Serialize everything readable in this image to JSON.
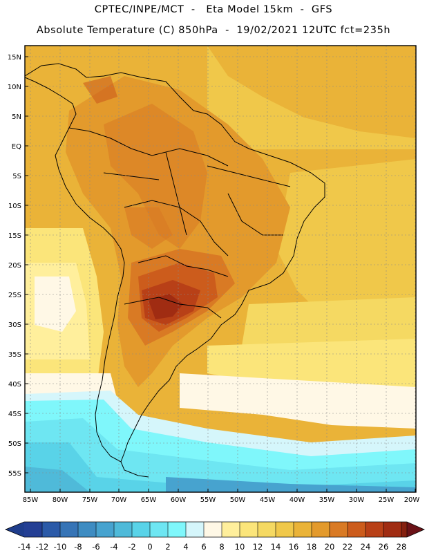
{
  "header": {
    "line1": "CPTEC/INPE/MCT  -   Eta Model 15km  -  GFS",
    "line2": "Absolute Temperature (C) 850hPa  -  19/02/2021 12UTC fct=235h"
  },
  "map": {
    "lat_labels": [
      "15N",
      "10N",
      "5N",
      "EQ",
      "5S",
      "10S",
      "15S",
      "20S",
      "25S",
      "30S",
      "35S",
      "40S",
      "45S",
      "50S",
      "55S"
    ],
    "lon_labels": [
      "85W",
      "80W",
      "75W",
      "70W",
      "65W",
      "60W",
      "55W",
      "50W",
      "45W",
      "40W",
      "35W",
      "30W",
      "25W",
      "20W"
    ],
    "lat_range": [
      16,
      -58
    ],
    "lon_range": [
      -86,
      -20
    ]
  },
  "colorbar": {
    "labels": [
      "-14",
      "-12",
      "-10",
      "-8",
      "-6",
      "-4",
      "-2",
      "0",
      "2",
      "4",
      "6",
      "8",
      "10",
      "12",
      "14",
      "16",
      "18",
      "20",
      "22",
      "24",
      "26",
      "28"
    ],
    "colors": {
      "under": "#1f3d8c",
      "c01": "#243f94",
      "c02": "#2b5aa8",
      "c03": "#3674b6",
      "c04": "#3e8cc2",
      "c05": "#47a3cf",
      "c06": "#4fbad9",
      "c07": "#59d3e8",
      "c08": "#6ee6f2",
      "c09": "#7ff7fb",
      "c10": "#d5f6fb",
      "c11": "#fff8e6",
      "c12": "#ffef9c",
      "c13": "#fbe57a",
      "c14": "#f5d962",
      "c15": "#f0c84a",
      "c16": "#eab338",
      "c17": "#e39a2c",
      "c18": "#d97a24",
      "c19": "#cc5c1c",
      "c20": "#b84017",
      "c21": "#a02c12",
      "c22": "#85200f",
      "over": "#6b1217"
    }
  }
}
